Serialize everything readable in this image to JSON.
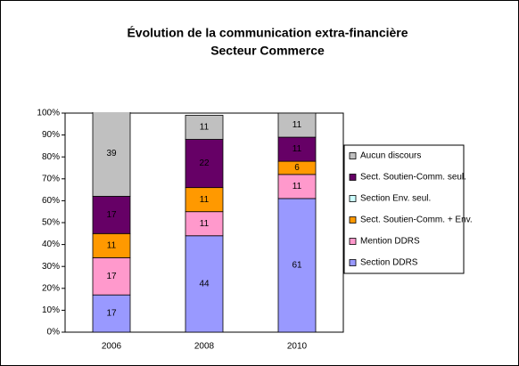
{
  "chart_data": {
    "type": "stacked_bar",
    "title": "Évolution de la communication extra-financière",
    "subtitle": "Secteur Commerce",
    "categories": [
      "2006",
      "2008",
      "2010"
    ],
    "series": [
      {
        "name": "Section DDRS",
        "color": "#9999ff",
        "values": [
          17,
          44,
          61
        ]
      },
      {
        "name": "Mention DDRS",
        "color": "#ff99cc",
        "values": [
          17,
          11,
          11
        ]
      },
      {
        "name": "Sect. Soutien-Comm. + Env.",
        "color": "#ff9900",
        "values": [
          11,
          11,
          6
        ]
      },
      {
        "name": "Section Env. seul.",
        "color": "#ccffff",
        "values": [
          0,
          0,
          0
        ]
      },
      {
        "name": "Sect. Soutien-Comm. seul.",
        "color": "#660066",
        "values": [
          17,
          22,
          11
        ]
      },
      {
        "name": "Aucun discours",
        "color": "#c0c0c0",
        "values": [
          39,
          11,
          11
        ]
      }
    ],
    "ylim": [
      0,
      100
    ],
    "yticks": [
      {
        "value": 0,
        "label": "0%"
      },
      {
        "value": 10,
        "label": "10%"
      },
      {
        "value": 20,
        "label": "20%"
      },
      {
        "value": 30,
        "label": "30%"
      },
      {
        "value": 40,
        "label": "40%"
      },
      {
        "value": 50,
        "label": "50%"
      },
      {
        "value": 60,
        "label": "60%"
      },
      {
        "value": 70,
        "label": "70%"
      },
      {
        "value": 80,
        "label": "80%"
      },
      {
        "value": 90,
        "label": "90%"
      },
      {
        "value": 100,
        "label": "100%"
      }
    ],
    "legend": "right"
  }
}
